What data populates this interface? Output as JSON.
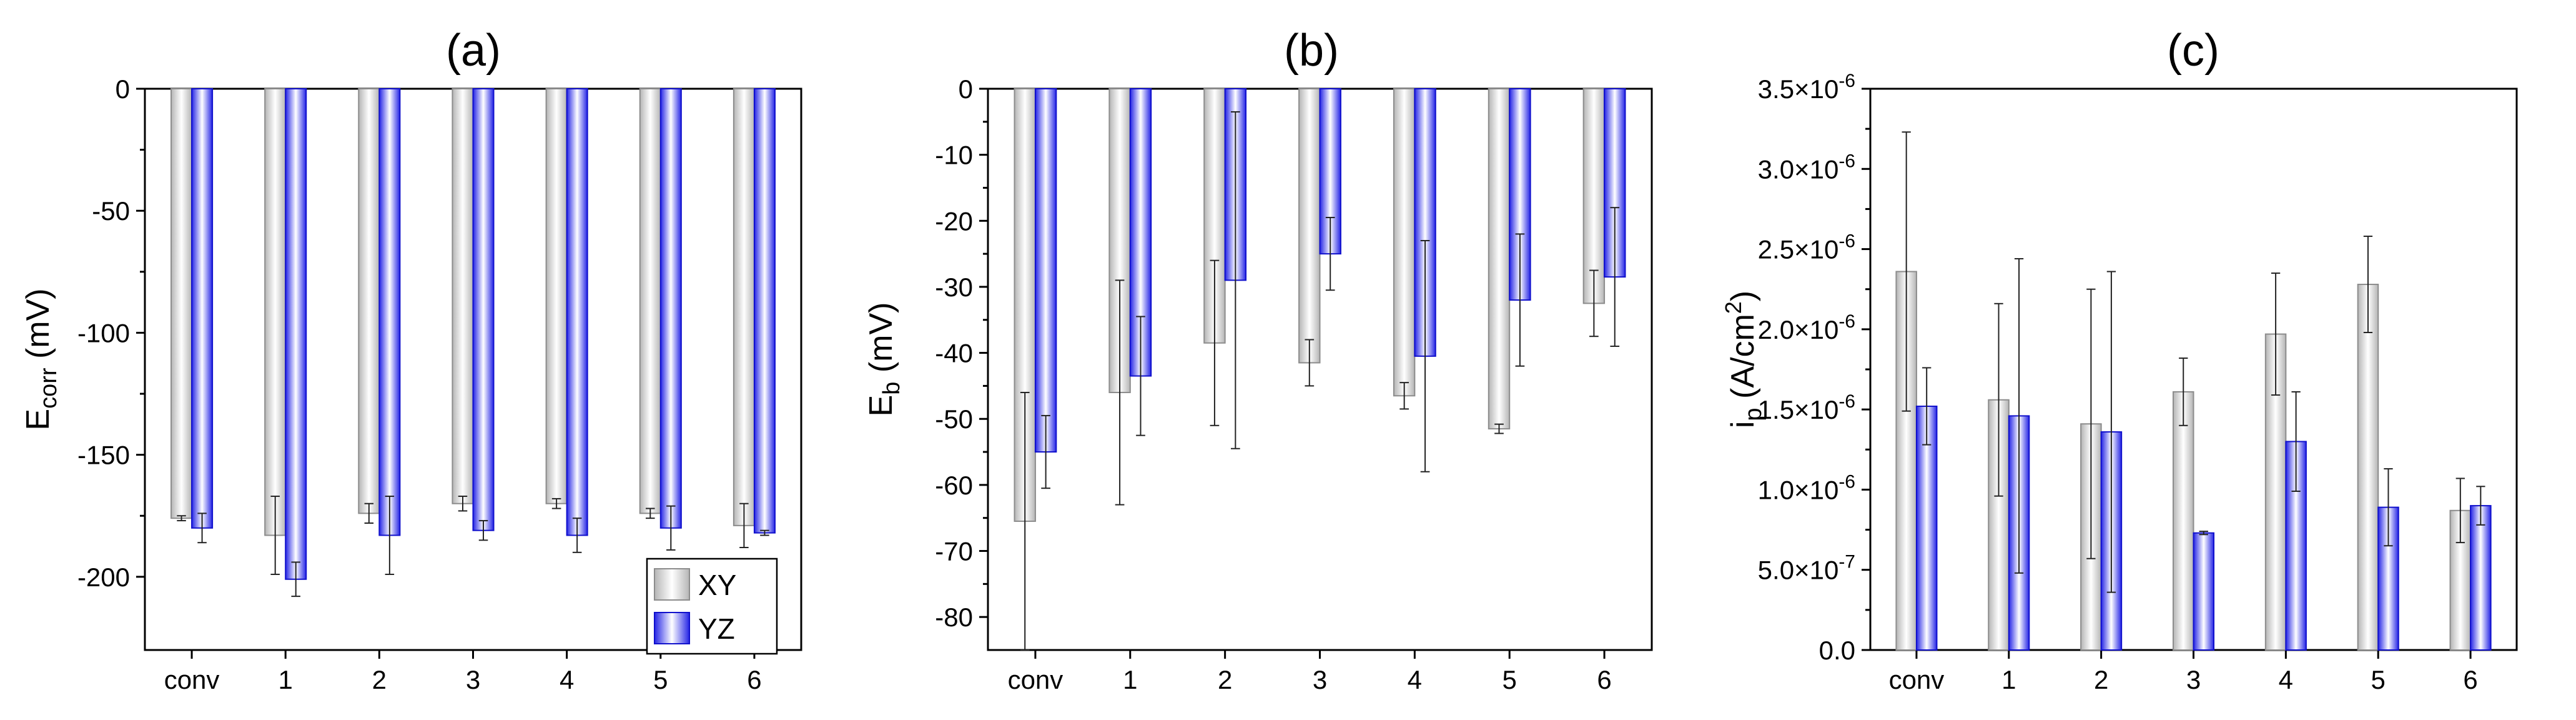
{
  "colors": {
    "xy_edge": "#8c8c8c",
    "yz_edge": "#1010cc",
    "xy_mid": "#ffffff",
    "xy_side": "#b9b9b9",
    "yz_mid": "#ffffff",
    "yz_side": "#2a2ae8"
  },
  "legend": {
    "xy": "XY",
    "yz": "YZ",
    "placement": "bottom-right of panel (a)"
  },
  "chart_data": [
    {
      "type": "bar",
      "title": "(a)",
      "ylabel_main": "E",
      "ylabel_sub": "corr",
      "ylabel_unit": " (mV)",
      "xlabel": "",
      "ylim": [
        -230,
        0
      ],
      "yticks": [
        0,
        -50,
        -100,
        -150,
        -200
      ],
      "ytick_labels": [
        "0",
        "-50",
        "-100",
        "-150",
        "-200"
      ],
      "categories": [
        "conv",
        "1",
        "2",
        "3",
        "4",
        "5",
        "6"
      ],
      "series": [
        {
          "name": "XY",
          "values": [
            -176,
            -183,
            -174,
            -170,
            -170,
            -174,
            -179
          ],
          "errors": [
            1,
            16,
            4,
            3,
            2,
            2,
            9
          ]
        },
        {
          "name": "YZ",
          "values": [
            -180,
            -201,
            -183,
            -181,
            -183,
            -180,
            -182
          ],
          "errors": [
            6,
            7,
            16,
            4,
            7,
            9,
            1
          ]
        }
      ]
    },
    {
      "type": "bar",
      "title": "(b)",
      "ylabel_main": "E",
      "ylabel_sub": "b",
      "ylabel_unit": "  (mV)",
      "xlabel": "",
      "ylim": [
        -85,
        0
      ],
      "yticks": [
        0,
        -10,
        -20,
        -30,
        -40,
        -50,
        -60,
        -70,
        -80
      ],
      "ytick_labels": [
        "0",
        "-10",
        "-20",
        "-30",
        "-40",
        "-50",
        "-60",
        "-70",
        "-80"
      ],
      "categories": [
        "conv",
        "1",
        "2",
        "3",
        "4",
        "5",
        "6"
      ],
      "series": [
        {
          "name": "XY",
          "values": [
            -65.5,
            -46,
            -38.5,
            -41.5,
            -46.5,
            -51.5,
            -32.5
          ],
          "errors": [
            19.5,
            17,
            12.5,
            3.5,
            2,
            0.7,
            5
          ]
        },
        {
          "name": "YZ",
          "values": [
            -55,
            -43.5,
            -29,
            -25,
            -40.5,
            -32,
            -28.5
          ],
          "errors": [
            5.5,
            9,
            25.5,
            5.5,
            17.5,
            10,
            10.5
          ]
        }
      ]
    },
    {
      "type": "bar",
      "title": "(c)",
      "ylabel_main": "i",
      "ylabel_sub": "p",
      "ylabel_unit": " (A/cm",
      "ylabel_sup": "2",
      "ylabel_close": ")",
      "xlabel": "",
      "ylim": [
        0,
        3.5e-06
      ],
      "yticks": [
        0,
        5e-07,
        1e-06,
        1.5e-06,
        2e-06,
        2.5e-06,
        3e-06,
        3.5e-06
      ],
      "ytick_labels": [
        {
          "mant": "0.0",
          "exp": ""
        },
        {
          "mant": "5.0×10",
          "exp": "-7"
        },
        {
          "mant": "1.0×10",
          "exp": "-6"
        },
        {
          "mant": "1.5×10",
          "exp": "-6"
        },
        {
          "mant": "2.0×10",
          "exp": "-6"
        },
        {
          "mant": "2.5×10",
          "exp": "-6"
        },
        {
          "mant": "3.0×10",
          "exp": "-6"
        },
        {
          "mant": "3.5×10",
          "exp": "-6"
        }
      ],
      "categories": [
        "conv",
        "1",
        "2",
        "3",
        "4",
        "5",
        "6"
      ],
      "series": [
        {
          "name": "XY",
          "values": [
            2.36e-06,
            1.56e-06,
            1.41e-06,
            1.61e-06,
            1.97e-06,
            2.28e-06,
            8.7e-07
          ],
          "errors": [
            8.7e-07,
            6e-07,
            8.4e-07,
            2.1e-07,
            3.8e-07,
            3e-07,
            2e-07
          ]
        },
        {
          "name": "YZ",
          "values": [
            1.52e-06,
            1.46e-06,
            1.36e-06,
            7.3e-07,
            1.3e-06,
            8.9e-07,
            9e-07
          ],
          "errors": [
            2.4e-07,
            9.8e-07,
            1e-06,
            1e-08,
            3.1e-07,
            2.4e-07,
            1.2e-07
          ]
        }
      ]
    }
  ]
}
